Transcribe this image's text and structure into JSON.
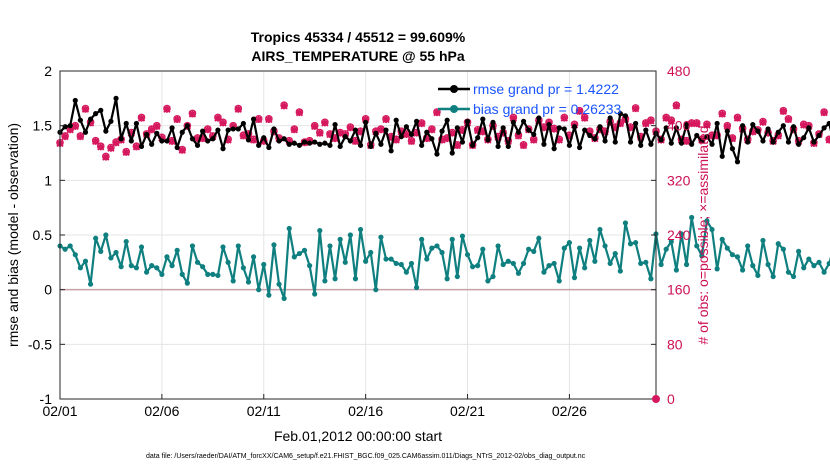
{
  "chart_data": {
    "type": "line",
    "title_line1": "Tropics 45334 / 45512 = 99.609%",
    "title_line2": "AIRS_TEMPERATURE @ 55 hPa",
    "xlabel": "Feb.01,2012 00:00:00 start",
    "ylabel_left": "rmse and bias (model - observation)",
    "ylabel_right": "# of obs: o=possible; ×=assimilated",
    "footnote": "data file: /Users/raeder/DAI/ATM_forcXX/CAM6_setup/f.e21.FHIST_BGC.f09_025.CAM6assim.011/Diags_NTrS_2012-02/obs_diag_output.nc",
    "ylim_left": [
      -1,
      2
    ],
    "ylim_right": [
      0,
      480
    ],
    "xlim_days": [
      0,
      29.25
    ],
    "left_ticks": [
      {
        "v": -1,
        "label": "-1"
      },
      {
        "v": -0.5,
        "label": "-0.5"
      },
      {
        "v": 0,
        "label": "0"
      },
      {
        "v": 0.5,
        "label": "0.5"
      },
      {
        "v": 1,
        "label": "1"
      },
      {
        "v": 1.5,
        "label": "1.5"
      },
      {
        "v": 2,
        "label": "2"
      }
    ],
    "right_ticks": [
      {
        "v": 0,
        "label": "0"
      },
      {
        "v": 80,
        "label": "80"
      },
      {
        "v": 160,
        "label": "160"
      },
      {
        "v": 240,
        "label": "240"
      },
      {
        "v": 320,
        "label": "320"
      },
      {
        "v": 400,
        "label": "400"
      },
      {
        "v": 480,
        "label": "480"
      }
    ],
    "x_ticks": [
      {
        "day": 0,
        "label": "02/01"
      },
      {
        "day": 5,
        "label": "02/06"
      },
      {
        "day": 10,
        "label": "02/11"
      },
      {
        "day": 15,
        "label": "02/16"
      },
      {
        "day": 20,
        "label": "02/21"
      },
      {
        "day": 25,
        "label": "02/26"
      }
    ],
    "x_step_days": 0.25,
    "legend": {
      "rmse": "rmse grand pr = 1.4222",
      "bias": "bias grand pr = 0.26233"
    },
    "colors": {
      "rmse": "#000000",
      "bias": "#0f7f7f",
      "obs": "#d6195e",
      "zero_line": "#c8a0a8",
      "legend_text": "#1a55ff"
    },
    "series": [
      {
        "name": "rmse",
        "values": [
          1.44,
          1.49,
          1.5,
          1.73,
          1.55,
          1.44,
          1.56,
          1.61,
          1.64,
          1.45,
          1.54,
          1.75,
          1.38,
          1.52,
          1.36,
          1.52,
          1.31,
          1.42,
          1.33,
          1.43,
          1.36,
          1.36,
          1.48,
          1.3,
          1.44,
          1.5,
          1.38,
          1.32,
          1.45,
          1.36,
          1.38,
          1.46,
          1.29,
          1.46,
          1.47,
          1.47,
          1.52,
          1.37,
          1.56,
          1.32,
          1.39,
          1.3,
          1.47,
          1.36,
          1.38,
          1.33,
          1.34,
          1.32,
          1.35,
          1.34,
          1.35,
          1.33,
          1.34,
          1.32,
          1.51,
          1.31,
          1.4,
          1.36,
          1.46,
          1.32,
          1.53,
          1.31,
          1.43,
          1.33,
          1.46,
          1.27,
          1.55,
          1.4,
          1.49,
          1.42,
          1.54,
          1.32,
          1.44,
          1.38,
          1.24,
          1.45,
          1.55,
          1.25,
          1.48,
          1.35,
          1.54,
          1.32,
          1.39,
          1.56,
          1.37,
          1.53,
          1.31,
          1.48,
          1.31,
          1.53,
          1.44,
          1.54,
          1.46,
          1.42,
          1.57,
          1.33,
          1.51,
          1.29,
          1.48,
          1.47,
          1.32,
          1.49,
          1.3,
          1.46,
          1.41,
          1.38,
          1.49,
          1.36,
          1.57,
          1.35,
          1.61,
          1.59,
          1.35,
          1.52,
          1.32,
          1.46,
          1.33,
          1.43,
          1.37,
          1.48,
          1.34,
          1.48,
          1.34,
          1.51,
          1.33,
          1.41,
          1.36,
          1.4,
          1.33,
          1.52,
          1.22,
          1.45,
          1.29,
          1.17,
          1.5,
          1.35,
          1.51,
          1.45,
          1.36,
          1.47,
          1.35,
          1.44,
          1.5,
          1.35,
          1.49,
          1.33,
          1.39,
          1.48,
          1.35,
          1.41,
          1.48,
          1.52,
          1.33,
          1.47,
          1.4,
          1.44,
          1.51,
          1.38,
          1.47,
          1.41,
          1.52,
          1.53,
          1.34,
          1.48,
          1.44,
          1.5,
          1.39,
          1.45,
          1.31,
          1.42,
          1.26,
          1.37,
          1.35,
          1.46,
          1.36,
          1.4,
          1.47,
          1.43,
          1.3,
          1.45,
          1.36,
          1.44,
          1.31,
          1.52,
          1.33,
          1.45,
          1.36,
          1.47,
          1.4,
          1.32,
          1.47,
          1.36,
          1.44,
          1.52,
          1.35,
          1.27,
          1.36,
          1.31,
          1.4,
          1.54,
          1.36,
          1.46,
          1.43,
          1.38,
          1.45,
          1.33,
          1.48,
          1.4,
          1.46,
          1.5,
          1.35,
          1.41,
          1.33,
          1.47,
          1.4,
          1.3,
          1.38,
          1.32,
          1.45,
          1.28,
          1.52,
          1.24,
          1.48,
          1.43,
          1.34,
          1.31,
          1.45,
          1.27,
          1.39,
          1.46,
          1.34,
          1.42,
          1.38,
          1.46,
          1.33,
          1.55,
          1.43,
          1.53,
          1.41,
          1.42,
          1.36,
          1.44,
          1.32,
          1.56,
          1.4,
          1.38,
          1.25,
          1.58,
          1.32,
          1.48,
          1.37,
          1.42,
          1.47,
          1.36,
          1.25,
          1.42,
          1.36,
          1.48,
          1.4,
          1.33,
          1.45,
          1.37,
          1.37,
          1.28,
          1.51,
          1.48,
          1.43,
          1.42,
          1.38,
          1.46,
          1.28,
          1.38,
          1.45,
          1.32,
          1.36,
          1.43,
          1.37,
          1.46,
          1.36,
          1.42,
          1.31,
          1.37
        ]
      },
      {
        "name": "bias",
        "values": [
          0.4,
          0.37,
          0.4,
          0.32,
          0.2,
          0.26,
          0.05,
          0.47,
          0.35,
          0.5,
          0.29,
          0.34,
          0.21,
          0.44,
          0.22,
          0.2,
          0.39,
          0.16,
          0.22,
          0.2,
          0.14,
          0.3,
          0.22,
          0.36,
          0.14,
          0.06,
          0.4,
          0.25,
          0.21,
          0.14,
          0.14,
          0.13,
          0.39,
          0.25,
          0.08,
          0.4,
          0.2,
          0.07,
          0.3,
          0.0,
          0.23,
          -0.05,
          0.41,
          0.05,
          -0.08,
          0.56,
          0.3,
          0.33,
          0.36,
          0.22,
          -0.04,
          0.54,
          0.08,
          0.4,
          0.1,
          0.46,
          0.25,
          0.5,
          0.1,
          0.55,
          0.26,
          0.34,
          0.0,
          0.48,
          0.28,
          0.28,
          0.24,
          0.23,
          0.16,
          0.24,
          0.02,
          0.46,
          0.28,
          0.38,
          0.4,
          0.34,
          0.1,
          0.46,
          0.12,
          0.49,
          0.32,
          0.21,
          0.22,
          0.37,
          0.08,
          0.12,
          0.4,
          0.23,
          0.26,
          0.24,
          0.15,
          0.24,
          0.37,
          0.35,
          0.47,
          0.16,
          0.22,
          0.24,
          0.08,
          0.38,
          0.43,
          0.11,
          0.38,
          0.2,
          0.45,
          0.26,
          0.55,
          0.4,
          0.24,
          0.33,
          0.17,
          0.61,
          0.42,
          0.43,
          0.24,
          0.25,
          0.1,
          0.51,
          0.23,
          0.37,
          0.44,
          0.18,
          0.51,
          0.23,
          0.66,
          0.4,
          0.31,
          0.63,
          0.55,
          0.19,
          0.46,
          0.38,
          0.32,
          0.3,
          0.18,
          0.4,
          0.22,
          0.13,
          0.45,
          0.23,
          0.12,
          0.42,
          0.37,
          0.16,
          0.12,
          0.35,
          0.2,
          0.28,
          0.22,
          0.25,
          0.16,
          0.24,
          0.4,
          0.34,
          0.26,
          0.17,
          0.21,
          0.15,
          0.25,
          0.27,
          0.16,
          0.33,
          0.36,
          0.2,
          0.31,
          0.12,
          0.26,
          0.2,
          0.28,
          0.16,
          0.34,
          0.26,
          0.21,
          0.28,
          0.14,
          0.22,
          0.41,
          0.13,
          0.1,
          0.27,
          0.34,
          0.37,
          0.2,
          0.4,
          0.25,
          0.38,
          0.2,
          0.44,
          0.28,
          0.3,
          0.32,
          0.34,
          0.36,
          0.29,
          0.32,
          0.34,
          0.23,
          0.43,
          0.31,
          0.52,
          0.35,
          0.29,
          0.62,
          0.42,
          0.4,
          0.47,
          0.22,
          0.35,
          0.5,
          0.43,
          0.26,
          0.35,
          0.13,
          0.29,
          0.2,
          0.41,
          0.22,
          0.27,
          0.34,
          0.25,
          0.18,
          0.24,
          0.29,
          0.16,
          0.33,
          0.44,
          0.37,
          0.24,
          0.16,
          0.31,
          0.34,
          0.24,
          0.35,
          0.18,
          0.26,
          0.33,
          0.24,
          0.44,
          0.28,
          0.35,
          0.38,
          0.19,
          0.27,
          0.36,
          0.25,
          0.31,
          0.28,
          0.22,
          0.34,
          0.4,
          0.28,
          0.19,
          0.25,
          0.32,
          0.31,
          0.41,
          0.36,
          0.24,
          0.41,
          0.22,
          0.43,
          0.27,
          0.32,
          0.21,
          0.56,
          0.38,
          0.3,
          0.31,
          0.41,
          0.39,
          0.21,
          0.37,
          0.54,
          0.29,
          0.32,
          0.22,
          0.38,
          0.44,
          0.27,
          0.36,
          0.38,
          0.26,
          0.37,
          0.45,
          0.63,
          0.22,
          0.24,
          0.47,
          0.3,
          0.2
        ]
      },
      {
        "name": "obs_possible",
        "values": [
          375,
          385,
          395,
          400,
          385,
          425,
          405,
          378,
          370,
          355,
          368,
          376,
          380,
          362,
          390,
          370,
          412,
          388,
          395,
          400,
          383,
          425,
          378,
          410,
          365,
          400,
          418,
          382,
          382,
          395,
          385,
          412,
          405,
          380,
          400,
          425,
          386,
          388,
          380,
          410,
          378,
          410,
          392,
          382,
          430,
          378,
          395,
          420,
          376,
          378,
          400,
          390,
          405,
          388,
          382,
          390,
          388,
          398,
          378,
          392,
          410,
          372,
          392,
          395,
          410,
          384,
          380,
          392,
          388,
          378,
          390,
          404,
          382,
          395,
          420,
          380,
          382,
          390,
          372,
          394,
          405,
          372,
          394,
          392,
          380,
          400,
          384,
          390,
          378,
          412,
          386,
          372,
          395,
          380,
          408,
          398,
          405,
          396,
          380,
          412,
          386,
          402,
          422,
          412,
          392,
          382,
          395,
          392,
          406,
          398,
          404,
          410,
          398,
          426,
          384,
          404,
          408,
          392,
          380,
          412,
          408,
          430,
          380,
          378,
          404,
          404,
          380,
          402,
          386,
          386,
          418,
          400,
          382,
          412,
          396,
          380,
          392,
          394,
          406,
          390,
          378,
          386,
          422,
          410,
          395,
          378,
          402,
          400,
          375,
          388,
          420,
          380,
          405,
          404,
          380,
          410,
          405,
          400,
          425,
          385,
          402,
          382,
          388,
          392,
          395,
          376,
          412,
          382,
          398,
          420,
          405,
          378,
          380,
          410,
          385,
          400,
          390,
          408,
          392,
          400,
          418,
          395,
          378,
          410,
          392,
          398,
          380,
          415,
          390,
          398,
          378,
          412,
          380,
          425,
          396,
          390,
          378,
          400,
          388,
          380,
          405,
          392,
          388,
          410,
          395,
          388,
          402,
          392,
          388,
          410,
          375,
          388,
          392,
          398,
          384,
          410,
          395,
          380,
          386,
          412,
          420,
          395,
          378,
          398,
          386,
          420,
          392,
          386,
          378,
          396,
          390,
          425,
          392,
          380,
          395,
          388,
          415,
          378,
          405,
          388,
          392,
          378,
          400,
          385,
          395,
          420,
          388,
          392,
          380,
          376,
          400,
          388,
          420,
          378,
          395,
          425
        ]
      },
      {
        "name": "obs_assimilated",
        "values": [
          374,
          384,
          394,
          399,
          384,
          424,
          404,
          377,
          369,
          354,
          367,
          375,
          379,
          361,
          389,
          369,
          411,
          387,
          394,
          399,
          382,
          424,
          377,
          409,
          364,
          399,
          417,
          381,
          381,
          394,
          384,
          411,
          404,
          379,
          399,
          424,
          385,
          387,
          379,
          409,
          377,
          409,
          391,
          381,
          429,
          377,
          394,
          419,
          375,
          377,
          399,
          389,
          404,
          387,
          381,
          389,
          387,
          397,
          377,
          391,
          409,
          371,
          391,
          394,
          409,
          383,
          379,
          391,
          387,
          377,
          389,
          403,
          381,
          394,
          419,
          379,
          381,
          389,
          371,
          393,
          404,
          371,
          393,
          391,
          379,
          399,
          383,
          389,
          377,
          411,
          385,
          371,
          394,
          379,
          407,
          397,
          404,
          395,
          379,
          411,
          385,
          401,
          421,
          411,
          391,
          381,
          394,
          391,
          405,
          397,
          403,
          409,
          397,
          425,
          383,
          403,
          407,
          391,
          379,
          411,
          407,
          429,
          379,
          377,
          403,
          403,
          379,
          401,
          385,
          385,
          417,
          399,
          381,
          411,
          395,
          379,
          391,
          393,
          405,
          389,
          377,
          385,
          421,
          409,
          394,
          377,
          401,
          399,
          374,
          387,
          419,
          379,
          404,
          403,
          379,
          409,
          404,
          399,
          424,
          384,
          401,
          381,
          387,
          391,
          394,
          375,
          411,
          381,
          397,
          419,
          404,
          377,
          379,
          409,
          384,
          399,
          389,
          407,
          391,
          399,
          417,
          394,
          377,
          409,
          391,
          397,
          379,
          414,
          389,
          397,
          377,
          411,
          379,
          424,
          395,
          389,
          377,
          399,
          387,
          379,
          404,
          391,
          387,
          409,
          394,
          387,
          401,
          391,
          387,
          409,
          374,
          387,
          391,
          397,
          383,
          409,
          394,
          379,
          385,
          411,
          419,
          394,
          377,
          397,
          385,
          419,
          391,
          385,
          377,
          395,
          389,
          424,
          391,
          379,
          394,
          387,
          414,
          377,
          404,
          387,
          391,
          377,
          399,
          384,
          394,
          419,
          387,
          391,
          379,
          375,
          399,
          387,
          419,
          377,
          394,
          424
        ]
      }
    ]
  }
}
